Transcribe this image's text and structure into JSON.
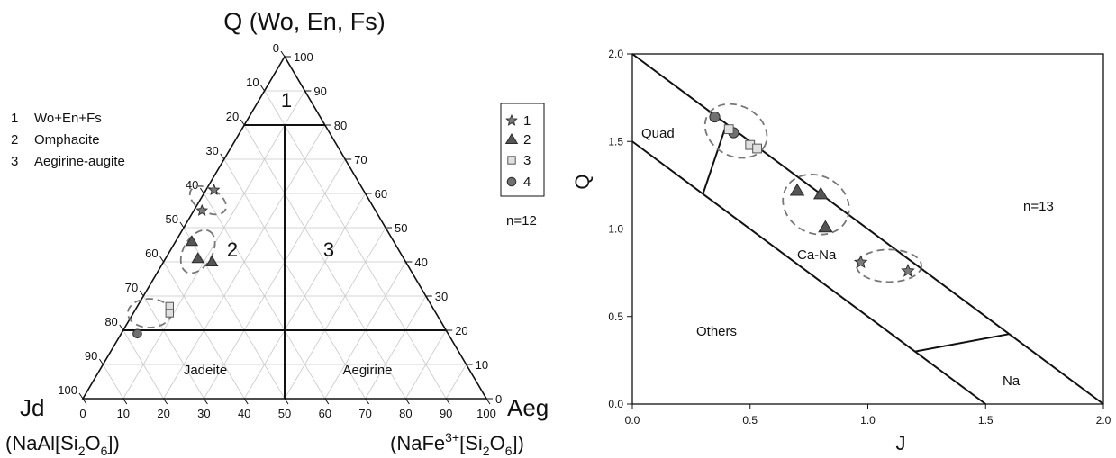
{
  "chart_data": [
    {
      "type": "scatter",
      "subtype": "ternary",
      "title": "",
      "apex_labels": {
        "top": "Q (Wo, En, Fs)",
        "left_symbol": "Jd",
        "left_formula_pre": "(NaAl[Si",
        "left_formula_sub": "2",
        "left_formula_mid": "O",
        "left_formula_sub2": "6",
        "left_formula_post": "])",
        "right_symbol": "Aeg",
        "right_formula_pre": "(NaFe",
        "right_formula_sup": "3+",
        "right_formula_mid": "[Si",
        "right_formula_sub": "2",
        "right_formula_mid2": "O",
        "right_formula_sub2": "6",
        "right_formula_post": "])"
      },
      "axis_ticks": [
        "0",
        "10",
        "20",
        "30",
        "40",
        "50",
        "60",
        "70",
        "80",
        "90",
        "100"
      ],
      "grid": true,
      "field_numbers": [
        "1",
        "2",
        "3"
      ],
      "field_names": [
        "Jadeite",
        "Aegirine"
      ],
      "key": [
        {
          "num": "1",
          "text": "Wo+En+Fs"
        },
        {
          "num": "2",
          "text": "Omphacite"
        },
        {
          "num": "3",
          "text": "Aegirine-augite"
        }
      ],
      "n_label": "n=12",
      "legend": {
        "placement": "right",
        "entries": [
          {
            "label": "1",
            "marker": "star"
          },
          {
            "label": "2",
            "marker": "triangle"
          },
          {
            "label": "3",
            "marker": "square"
          },
          {
            "label": "4",
            "marker": "circle"
          }
        ]
      },
      "series": [
        {
          "marker": "star",
          "points": [
            {
              "Q": 55,
              "Jd": 43,
              "Aeg": 2
            },
            {
              "Q": 61,
              "Jd": 37,
              "Aeg": 2
            }
          ]
        },
        {
          "marker": "triangle",
          "points": [
            {
              "Q": 46,
              "Jd": 50,
              "Aeg": 4
            },
            {
              "Q": 41,
              "Jd": 51,
              "Aeg": 8
            },
            {
              "Q": 40,
              "Jd": 48,
              "Aeg": 12
            }
          ]
        },
        {
          "marker": "square",
          "points": [
            {
              "Q": 27,
              "Jd": 65,
              "Aeg": 8
            },
            {
              "Q": 25,
              "Jd": 66,
              "Aeg": 9
            }
          ]
        },
        {
          "marker": "circle",
          "points": [
            {
              "Q": 19,
              "Jd": 77,
              "Aeg": 4
            }
          ]
        }
      ],
      "clusters": [
        {
          "Q": 25,
          "Jd": 71,
          "Aeg": 4
        },
        {
          "Q": 43,
          "Jd": 50,
          "Aeg": 7
        },
        {
          "Q": 58,
          "Jd": 40,
          "Aeg": 2
        }
      ]
    },
    {
      "type": "scatter",
      "title": "",
      "xlabel": "J",
      "ylabel": "Q",
      "xlim": [
        0,
        2
      ],
      "ylim": [
        0,
        2
      ],
      "xticks": [
        "0.0",
        "0.5",
        "1.0",
        "1.5",
        "2.0"
      ],
      "yticks": [
        "0.0",
        "0.5",
        "1.0",
        "1.5",
        "2.0"
      ],
      "n_label": "n=13",
      "region_labels": [
        "Quad",
        "Ca-Na",
        "Others",
        "Na"
      ],
      "series": [
        {
          "marker": "circle",
          "points": [
            [
              0.35,
              1.64
            ],
            [
              0.43,
              1.55
            ]
          ]
        },
        {
          "marker": "square",
          "points": [
            [
              0.41,
              1.57
            ],
            [
              0.5,
              1.48
            ],
            [
              0.53,
              1.46
            ]
          ]
        },
        {
          "marker": "triangle",
          "points": [
            [
              0.7,
              1.22
            ],
            [
              0.8,
              1.2
            ],
            [
              0.82,
              1.01
            ]
          ]
        },
        {
          "marker": "star",
          "points": [
            [
              0.97,
              0.81
            ],
            [
              1.17,
              0.76
            ]
          ]
        }
      ],
      "clusters": [
        {
          "cx": 0.44,
          "cy": 1.56
        },
        {
          "cx": 0.78,
          "cy": 1.14
        },
        {
          "cx": 1.09,
          "cy": 0.79
        }
      ]
    }
  ]
}
